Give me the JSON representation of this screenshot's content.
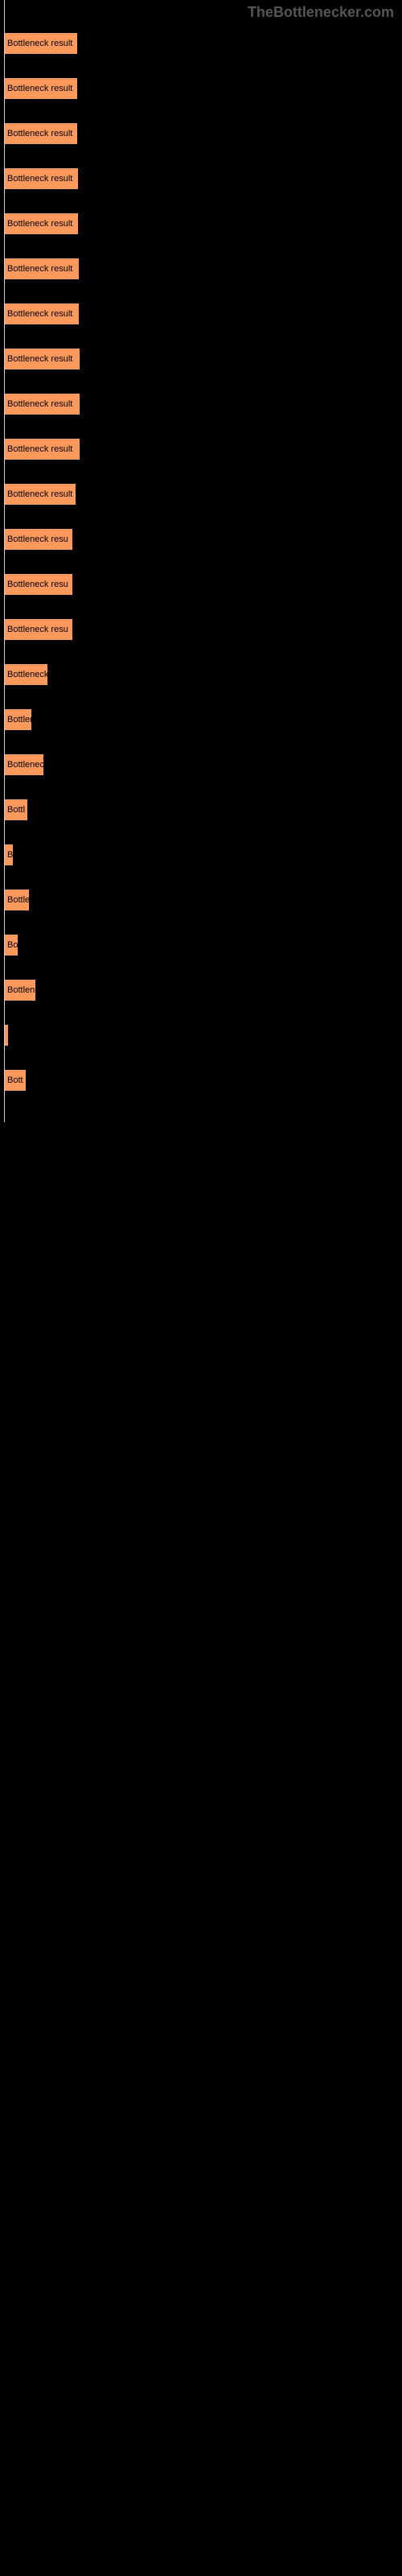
{
  "watermark": "TheBottlenecker.com",
  "bars": [
    {
      "label": "Bottleneck result",
      "width": 92
    },
    {
      "label": "Bottleneck result",
      "width": 92
    },
    {
      "label": "Bottleneck result",
      "width": 92
    },
    {
      "label": "Bottleneck result",
      "width": 93
    },
    {
      "label": "Bottleneck result",
      "width": 93
    },
    {
      "label": "Bottleneck result",
      "width": 94
    },
    {
      "label": "Bottleneck result",
      "width": 94
    },
    {
      "label": "Bottleneck result",
      "width": 95
    },
    {
      "label": "Bottleneck result",
      "width": 95
    },
    {
      "label": "Bottleneck result",
      "width": 95
    },
    {
      "label": "Bottleneck result",
      "width": 90
    },
    {
      "label": "Bottleneck resu",
      "width": 86
    },
    {
      "label": "Bottleneck resu",
      "width": 86
    },
    {
      "label": "Bottleneck resu",
      "width": 86
    },
    {
      "label": "Bottleneck",
      "width": 55
    },
    {
      "label": "Bottler",
      "width": 35
    },
    {
      "label": "Bottlenec",
      "width": 50
    },
    {
      "label": "Bottl",
      "width": 30
    },
    {
      "label": "B",
      "width": 12
    },
    {
      "label": "Bottle",
      "width": 32
    },
    {
      "label": "Bo",
      "width": 18
    },
    {
      "label": "Bottlen",
      "width": 40
    },
    {
      "label": "",
      "width": 6
    },
    {
      "label": "Bott",
      "width": 28
    }
  ],
  "colors": {
    "background": "#000000",
    "bar_fill": "#ff9a5c",
    "bar_border": "#000000",
    "text": "#000000",
    "watermark": "#555555",
    "divider": "#d0d0d0"
  }
}
